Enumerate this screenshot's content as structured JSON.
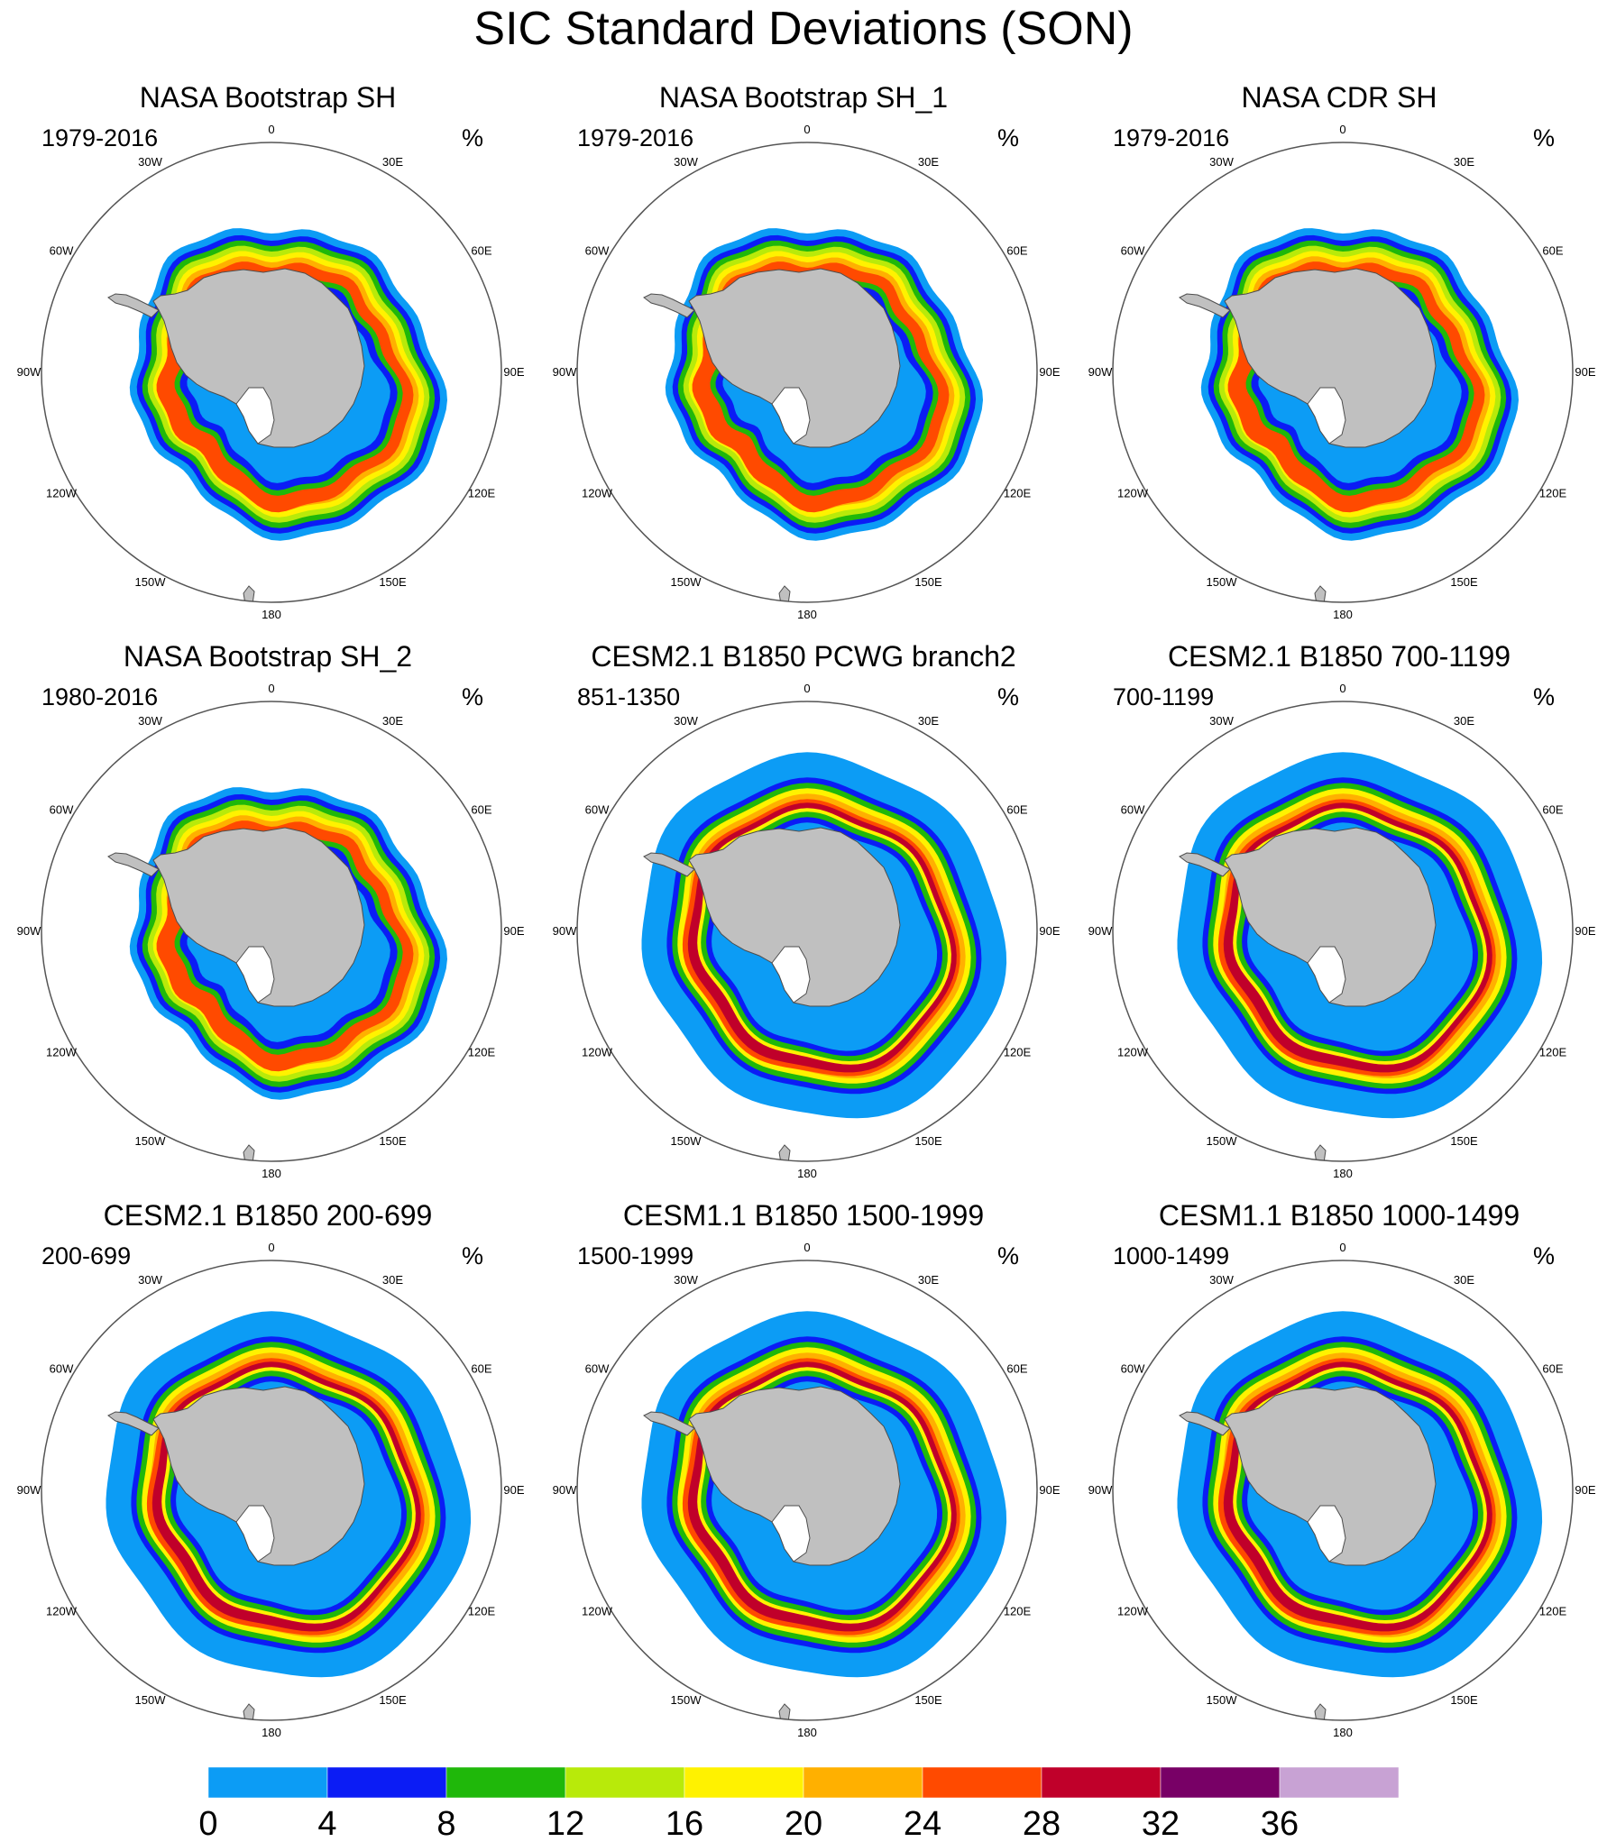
{
  "title": "SIC Standard Deviations (SON)",
  "colors": {
    "ocean": "#ffffff",
    "land": "#c0c0c0",
    "coast": "#4d4d4d",
    "circle": "#555555",
    "levels": [
      "#0c9cf5",
      "#0b1cf5",
      "#1fb80a",
      "#b8ea0a",
      "#fff200",
      "#ffb000",
      "#ff4a00",
      "#c0002a",
      "#780066",
      "#c8a2d4"
    ]
  },
  "map_labels": {
    "lon_0": "0",
    "lon_30e": "30E",
    "lon_60e": "60E",
    "lon_90e": "90E",
    "lon_120e": "120E",
    "lon_150e": "150E",
    "lon_180": "180",
    "lon_150w": "150W",
    "lon_120w": "120W",
    "lon_90w": "90W",
    "lon_60w": "60W",
    "lon_30w": "30W"
  },
  "panels": [
    {
      "title": "NASA Bootstrap SH",
      "left": "1979-2016",
      "right": "%",
      "kind": "obs"
    },
    {
      "title": "NASA Bootstrap SH_1",
      "left": "1979-2016",
      "right": "%",
      "kind": "obs"
    },
    {
      "title": "NASA CDR SH",
      "left": "1979-2016",
      "right": "%",
      "kind": "obs"
    },
    {
      "title": "NASA Bootstrap SH_2",
      "left": "1980-2016",
      "right": "%",
      "kind": "obs"
    },
    {
      "title": "CESM2.1 B1850 PCWG branch2",
      "left": "851-1350",
      "right": "%",
      "kind": "model"
    },
    {
      "title": "CESM2.1 B1850 700-1199",
      "left": "700-1199",
      "right": "%",
      "kind": "model"
    },
    {
      "title": "CESM2.1 B1850 200-699",
      "left": "200-699",
      "right": "%",
      "kind": "model"
    },
    {
      "title": "CESM1.1 B1850 1500-1999",
      "left": "1500-1999",
      "right": "%",
      "kind": "model"
    },
    {
      "title": "CESM1.1 B1850 1000-1499",
      "left": "1000-1499",
      "right": "%",
      "kind": "model"
    }
  ],
  "colorbar": {
    "ticks": [
      "0",
      "4",
      "8",
      "12",
      "16",
      "20",
      "24",
      "28",
      "32",
      "36"
    ],
    "boundaries": [
      0,
      4,
      8,
      12,
      16,
      20,
      24,
      28,
      32,
      36,
      40
    ]
  }
}
